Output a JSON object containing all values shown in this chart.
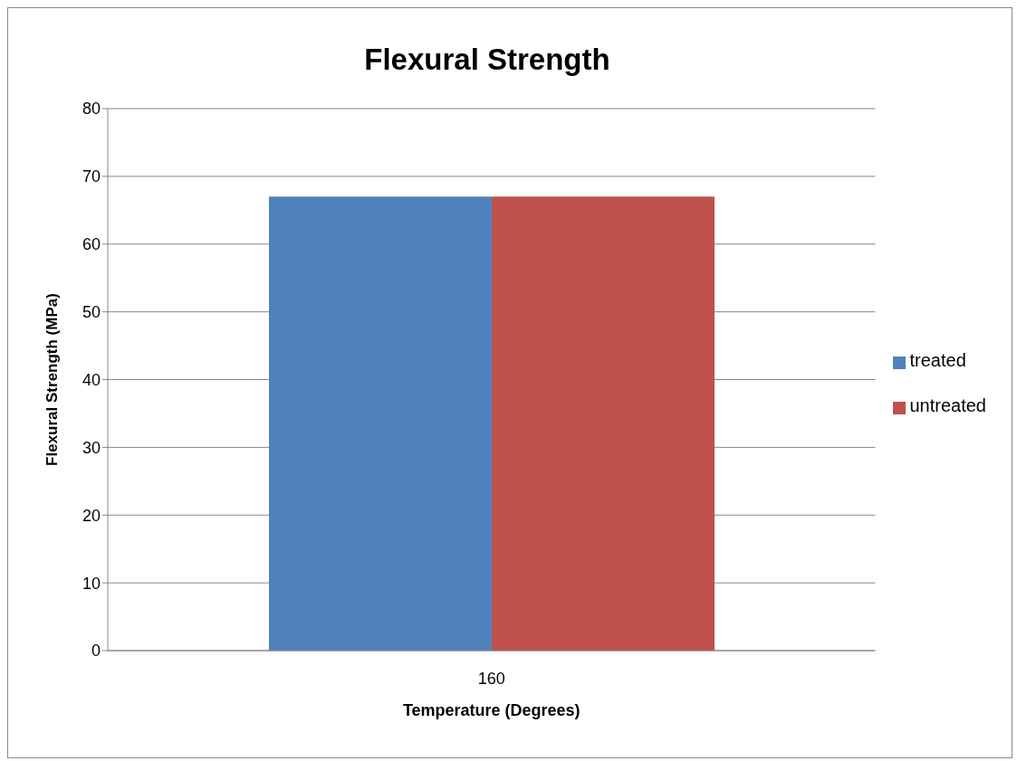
{
  "chart_data": {
    "type": "bar",
    "title": "Flexural Strength",
    "xlabel": "Temperature (Degrees)",
    "ylabel": "Flexural Strength (MPa)",
    "categories": [
      "160"
    ],
    "series": [
      {
        "name": "treated",
        "color": "#4f81bd",
        "values": [
          67
        ]
      },
      {
        "name": "untreated",
        "color": "#c0504d",
        "values": [
          67
        ]
      }
    ],
    "ylim": [
      0,
      80
    ],
    "yticks": [
      0,
      10,
      20,
      30,
      40,
      50,
      60,
      70,
      80
    ],
    "grid": "y",
    "legend": "right"
  }
}
